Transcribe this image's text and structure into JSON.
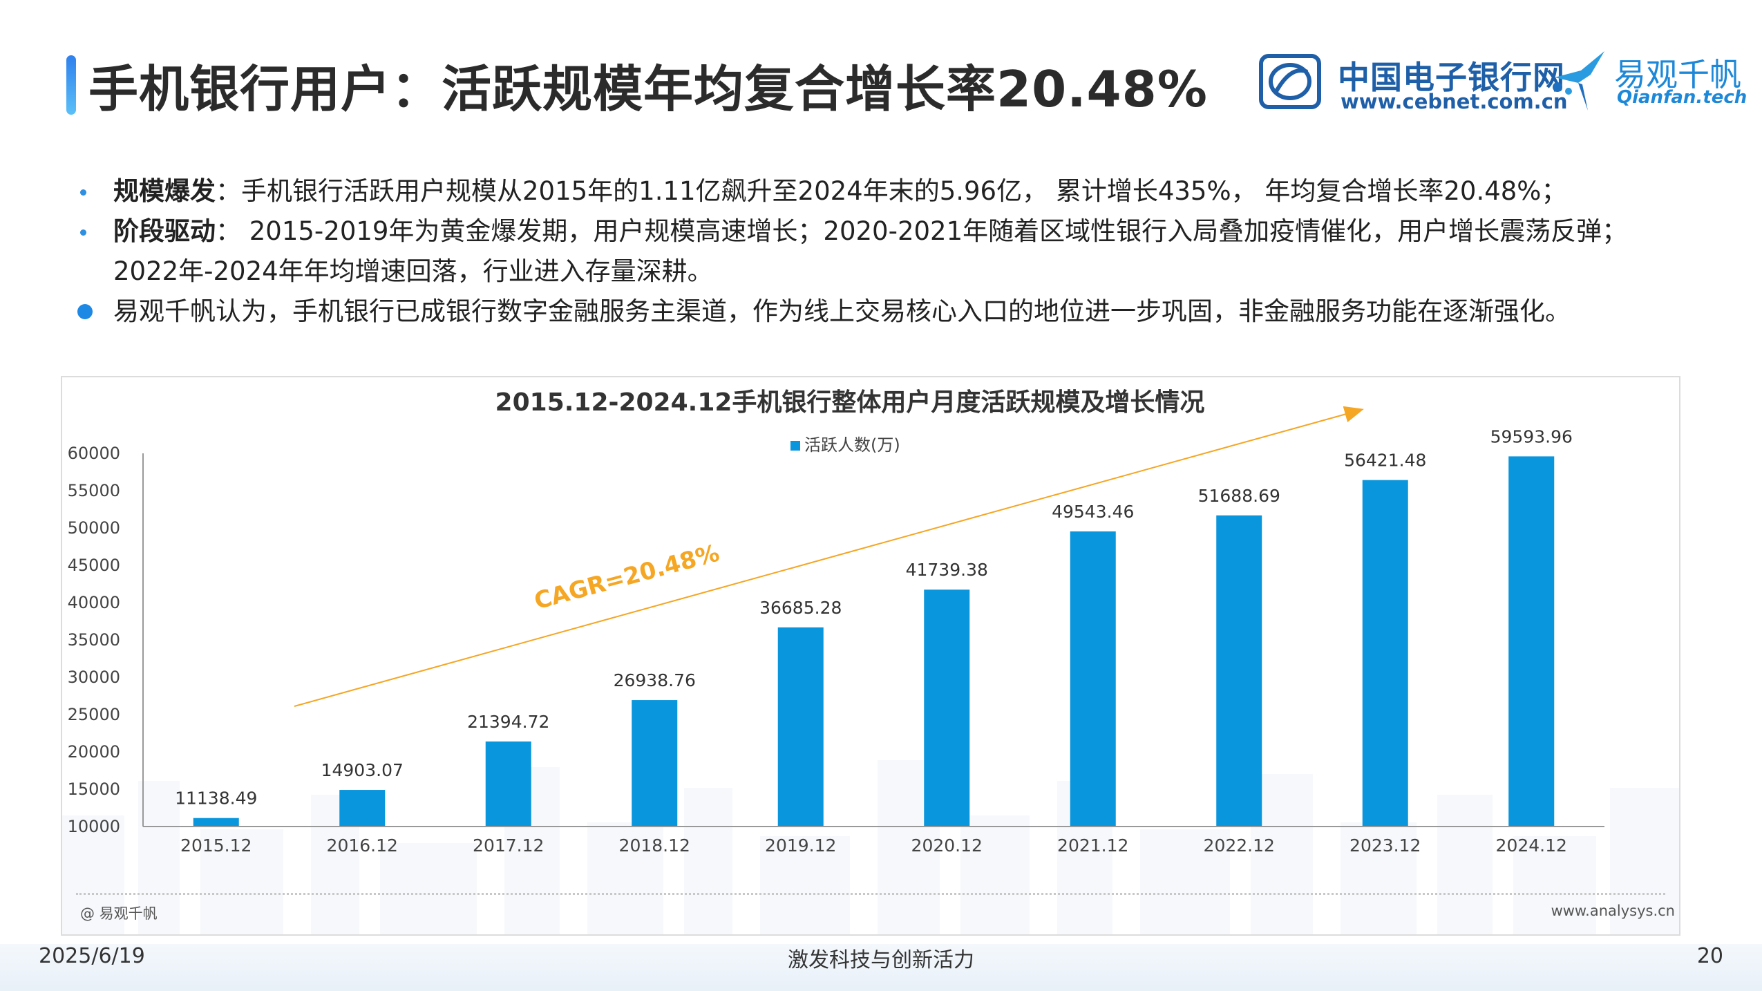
{
  "page": {
    "title": "手机银行用户：活跃规模年均复合增长率20.48%",
    "date": "2025/6/19",
    "slogan": "激发科技与创新活力",
    "page_number": "20"
  },
  "logos": {
    "cebnet_name": "中国电子银行网",
    "cebnet_url": "www.cebnet.com.cn",
    "qianfan_name": "易观千帆",
    "qianfan_url": "Qianfan.tech"
  },
  "bullets": [
    {
      "lead": "规模爆发",
      "text": "：手机银行活跃用户规模从2015年的1.11亿飙升至2024年末的5.96亿， 累计增长435%， 年均复合增长率20.48%；"
    },
    {
      "lead": "阶段驱动",
      "text": "： 2015-2019年为黄金爆发期，用户规模高速增长；2020-2021年随着区域性银行入局叠加疫情催化，用户增长震荡反弹；"
    },
    {
      "lead": "",
      "text": "2022年-2024年年均增速回落，行业进入存量深耕。"
    },
    {
      "lead": "",
      "text": "易观千帆认为，手机银行已成银行数字金融服务主渠道，作为线上交易核心入口的地位进一步巩固，非金融服务功能在逐渐强化。"
    }
  ],
  "footer": {
    "source_left": "@ 易观千帆",
    "source_right": "www.analysys.cn"
  },
  "colors": {
    "bar": "#0a96dc",
    "trend": "#f5a623",
    "accent": "#1e88e5"
  },
  "chart_data": {
    "type": "bar",
    "title": "2015.12-2024.12手机银行整体用户月度活跃规模及增长情况",
    "categories": [
      "2015.12",
      "2016.12",
      "2017.12",
      "2018.12",
      "2019.12",
      "2020.12",
      "2021.12",
      "2022.12",
      "2023.12",
      "2024.12"
    ],
    "series": [
      {
        "name": "活跃人数(万)",
        "values": [
          11138.49,
          14903.07,
          21394.72,
          26938.76,
          36685.28,
          41739.38,
          49543.46,
          51688.69,
          56421.48,
          59593.96
        ]
      }
    ],
    "data_labels": [
      "11138.49",
      "14903.07",
      "21394.72",
      "26938.76",
      "36685.28",
      "41739.38",
      "49543.46",
      "51688.69",
      "56421.48",
      "59593.96"
    ],
    "yticks": [
      "10000",
      "15000",
      "20000",
      "25000",
      "30000",
      "35000",
      "40000",
      "45000",
      "50000",
      "55000",
      "60000"
    ],
    "ylim": [
      10000,
      60000
    ],
    "legend_position": "top-center",
    "grid": false,
    "annotation": "CAGR=20.48%"
  }
}
